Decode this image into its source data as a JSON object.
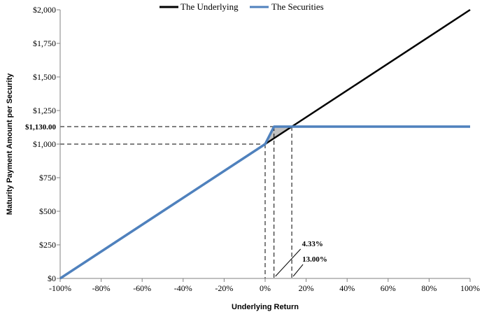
{
  "chart_data": {
    "type": "line",
    "xlabel": "Underlying Return",
    "ylabel": "Maturity Payment Amount per Security",
    "xlim": [
      -100,
      100
    ],
    "ylim": [
      0,
      2000
    ],
    "x_ticks": [
      -100,
      -80,
      -60,
      -40,
      -20,
      0,
      20,
      40,
      60,
      80,
      100
    ],
    "x_tick_labels": [
      "-100%",
      "-80%",
      "-60%",
      "-40%",
      "-20%",
      "0%",
      "20%",
      "40%",
      "60%",
      "80%",
      "100%"
    ],
    "y_ticks": [
      0,
      250,
      500,
      750,
      1000,
      1250,
      1500,
      1750,
      2000
    ],
    "y_tick_labels": [
      "$0",
      "$250",
      "$500",
      "$750",
      "$1,000",
      "$1,250",
      "$1,500",
      "$1,750",
      "$2,000"
    ],
    "legend_position": "top-center",
    "series": [
      {
        "name": "The Underlying",
        "color": "#000000",
        "x": [
          -100,
          100
        ],
        "y": [
          0,
          2000
        ]
      },
      {
        "name": "The Securities",
        "color": "#4f81bd",
        "x": [
          -100,
          0,
          4.33,
          100
        ],
        "y": [
          0,
          1000,
          1130,
          1130
        ]
      }
    ],
    "reference_lines": {
      "cap_value": 1130,
      "cap_label": "$1,130.00",
      "start_value": 1000,
      "x_at_zero": 0,
      "x_at_cap": 4.33,
      "x_at_cross": 13.0
    },
    "annotations": [
      {
        "label": "4.33%",
        "x": 4.33
      },
      {
        "label": "13.00%",
        "x": 13.0
      }
    ],
    "shaded_region": {
      "x": [
        0,
        4.33,
        13.0
      ],
      "fill": "#c0c0c0"
    }
  }
}
